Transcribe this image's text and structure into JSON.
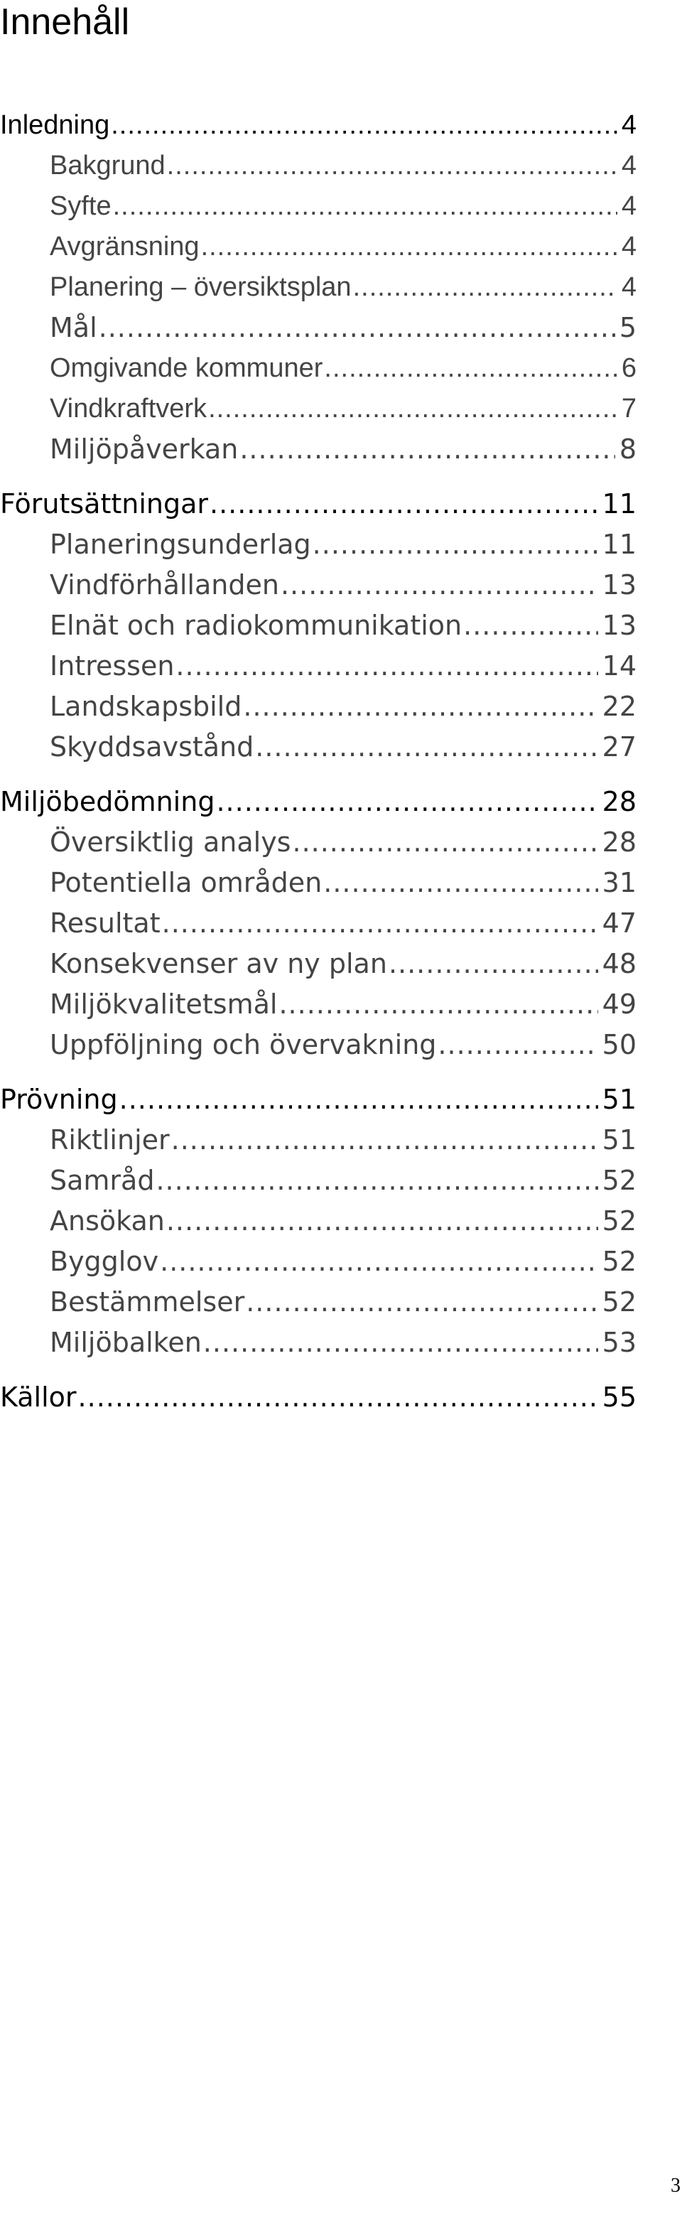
{
  "title": "Innehåll",
  "toc": [
    {
      "label": "Inledning",
      "page": "4",
      "children": [
        {
          "label": "Bakgrund",
          "page": "4"
        },
        {
          "label": "Syfte",
          "page": "4"
        },
        {
          "label": "Avgränsning",
          "page": "4"
        },
        {
          "label": "Planering – översiktsplan",
          "page": "4"
        },
        {
          "label": "Mål",
          "page": "5"
        },
        {
          "label": "Omgivande kommuner",
          "page": "6"
        },
        {
          "label": "Vindkraftverk",
          "page": "7"
        },
        {
          "label": "Miljöpåverkan",
          "page": "8"
        }
      ]
    },
    {
      "label": "Förutsättningar",
      "page": "11",
      "children": [
        {
          "label": "Planeringsunderlag",
          "page": "11"
        },
        {
          "label": "Vindförhållanden",
          "page": "13"
        },
        {
          "label": "Elnät och radiokommunikation",
          "page": "13"
        },
        {
          "label": "Intressen",
          "page": "14"
        },
        {
          "label": "Landskapsbild",
          "page": "22"
        },
        {
          "label": "Skyddsavstånd",
          "page": "27"
        }
      ]
    },
    {
      "label": "Miljöbedömning",
      "page": "28",
      "children": [
        {
          "label": "Översiktlig analys",
          "page": "28"
        },
        {
          "label": "Potentiella områden",
          "page": "31"
        },
        {
          "label": "Resultat",
          "page": "47"
        },
        {
          "label": "Konsekvenser av ny plan",
          "page": "48"
        },
        {
          "label": "Miljökvalitetsmål",
          "page": "49"
        },
        {
          "label": "Uppföljning och övervakning",
          "page": "50"
        }
      ]
    },
    {
      "label": "Prövning",
      "page": "51",
      "children": [
        {
          "label": "Riktlinjer",
          "page": "51"
        },
        {
          "label": "Samråd",
          "page": "52"
        },
        {
          "label": "Ansökan",
          "page": "52"
        },
        {
          "label": "Bygglov",
          "page": "52"
        },
        {
          "label": "Bestämmelser",
          "page": "52"
        },
        {
          "label": "Miljöbalken",
          "page": "53"
        }
      ]
    },
    {
      "label": "Källor",
      "page": "55",
      "children": []
    }
  ],
  "page_number": "3"
}
